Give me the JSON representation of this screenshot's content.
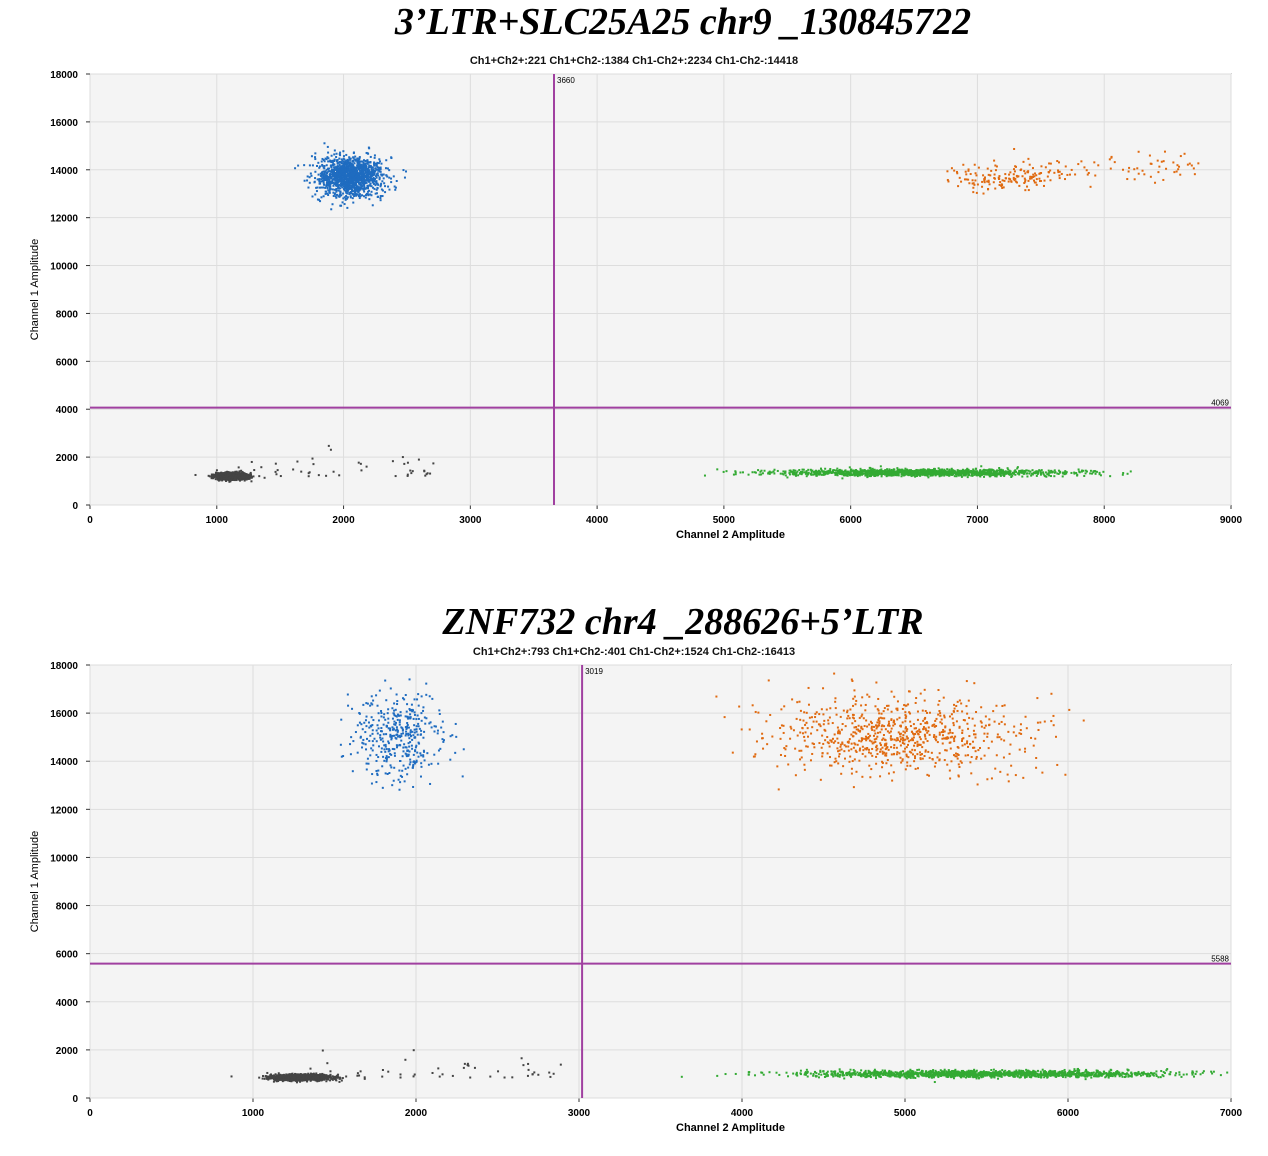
{
  "chart_data": [
    {
      "type": "scatter",
      "title": "3’LTR+SLC25A25 chr9 _130845722",
      "subtitle": "Ch1+Ch2+:221  Ch1+Ch2-:1384  Ch1-Ch2+:2234  Ch1-Ch2-:14418",
      "xlabel": "Channel 2 Amplitude",
      "ylabel": "Channel 1 Amplitude",
      "xlim": [
        0,
        9000
      ],
      "ylim": [
        0,
        18000
      ],
      "xticks": [
        0,
        1000,
        2000,
        3000,
        4000,
        5000,
        6000,
        7000,
        8000,
        9000
      ],
      "yticks": [
        0,
        2000,
        4000,
        6000,
        8000,
        10000,
        12000,
        14000,
        16000,
        18000
      ],
      "grid": true,
      "thresholds": {
        "x": 3660,
        "y": 4069,
        "x_label": "3660",
        "y_label": "4069",
        "color": "#a040a0"
      },
      "clusters": [
        {
          "name": "Ch1+Ch2+",
          "count": 221,
          "color": "#e06a10",
          "x_range": [
            6900,
            8750
          ],
          "y_center": 13600,
          "y_slope": 600,
          "sd_y": 300
        },
        {
          "name": "Ch1+Ch2-",
          "count": 1384,
          "color": "#1f6cc0",
          "x_center": 2050,
          "sd_x": 130,
          "y_center": 13700,
          "sd_y": 400
        },
        {
          "name": "Ch1-Ch2+",
          "count": 2234,
          "color": "#33aa33",
          "x_center": 6550,
          "sd_x": 550,
          "y_center": 1350,
          "sd_y": 70
        },
        {
          "name": "Ch1-Ch2-",
          "count": 14418,
          "color": "#444444",
          "x_center": 1120,
          "sd_x": 60,
          "y_center": 1200,
          "sd_y": 70
        }
      ]
    },
    {
      "type": "scatter",
      "title": "ZNF732 chr4 _288626+5’LTR",
      "subtitle": "Ch1+Ch2+:793  Ch1+Ch2-:401  Ch1-Ch2+:1524  Ch1-Ch2-:16413",
      "xlabel": "Channel 2 Amplitude",
      "ylabel": "Channel 1 Amplitude",
      "xlim": [
        0,
        7000
      ],
      "ylim": [
        0,
        18000
      ],
      "xticks": [
        0,
        1000,
        2000,
        3000,
        4000,
        5000,
        6000,
        7000
      ],
      "yticks": [
        0,
        2000,
        4000,
        6000,
        8000,
        10000,
        12000,
        14000,
        16000,
        18000
      ],
      "grid": true,
      "thresholds": {
        "x": 3019,
        "y": 5588,
        "x_label": "3019",
        "y_label": "5588",
        "color": "#a040a0"
      },
      "clusters": [
        {
          "name": "Ch1+Ch2+",
          "count": 793,
          "color": "#e06a10",
          "x_center": 4950,
          "sd_x": 380,
          "y_center": 15100,
          "sd_y": 800
        },
        {
          "name": "Ch1+Ch2-",
          "count": 401,
          "color": "#1f6cc0",
          "x_center": 1900,
          "sd_x": 140,
          "y_center": 15000,
          "sd_y": 900
        },
        {
          "name": "Ch1-Ch2+",
          "count": 1524,
          "color": "#33aa33",
          "x_center": 5500,
          "sd_x": 550,
          "y_center": 1000,
          "sd_y": 70
        },
        {
          "name": "Ch1-Ch2-",
          "count": 16413,
          "color": "#444444",
          "x_center": 1300,
          "sd_x": 90,
          "y_center": 850,
          "sd_y": 60
        }
      ]
    }
  ]
}
